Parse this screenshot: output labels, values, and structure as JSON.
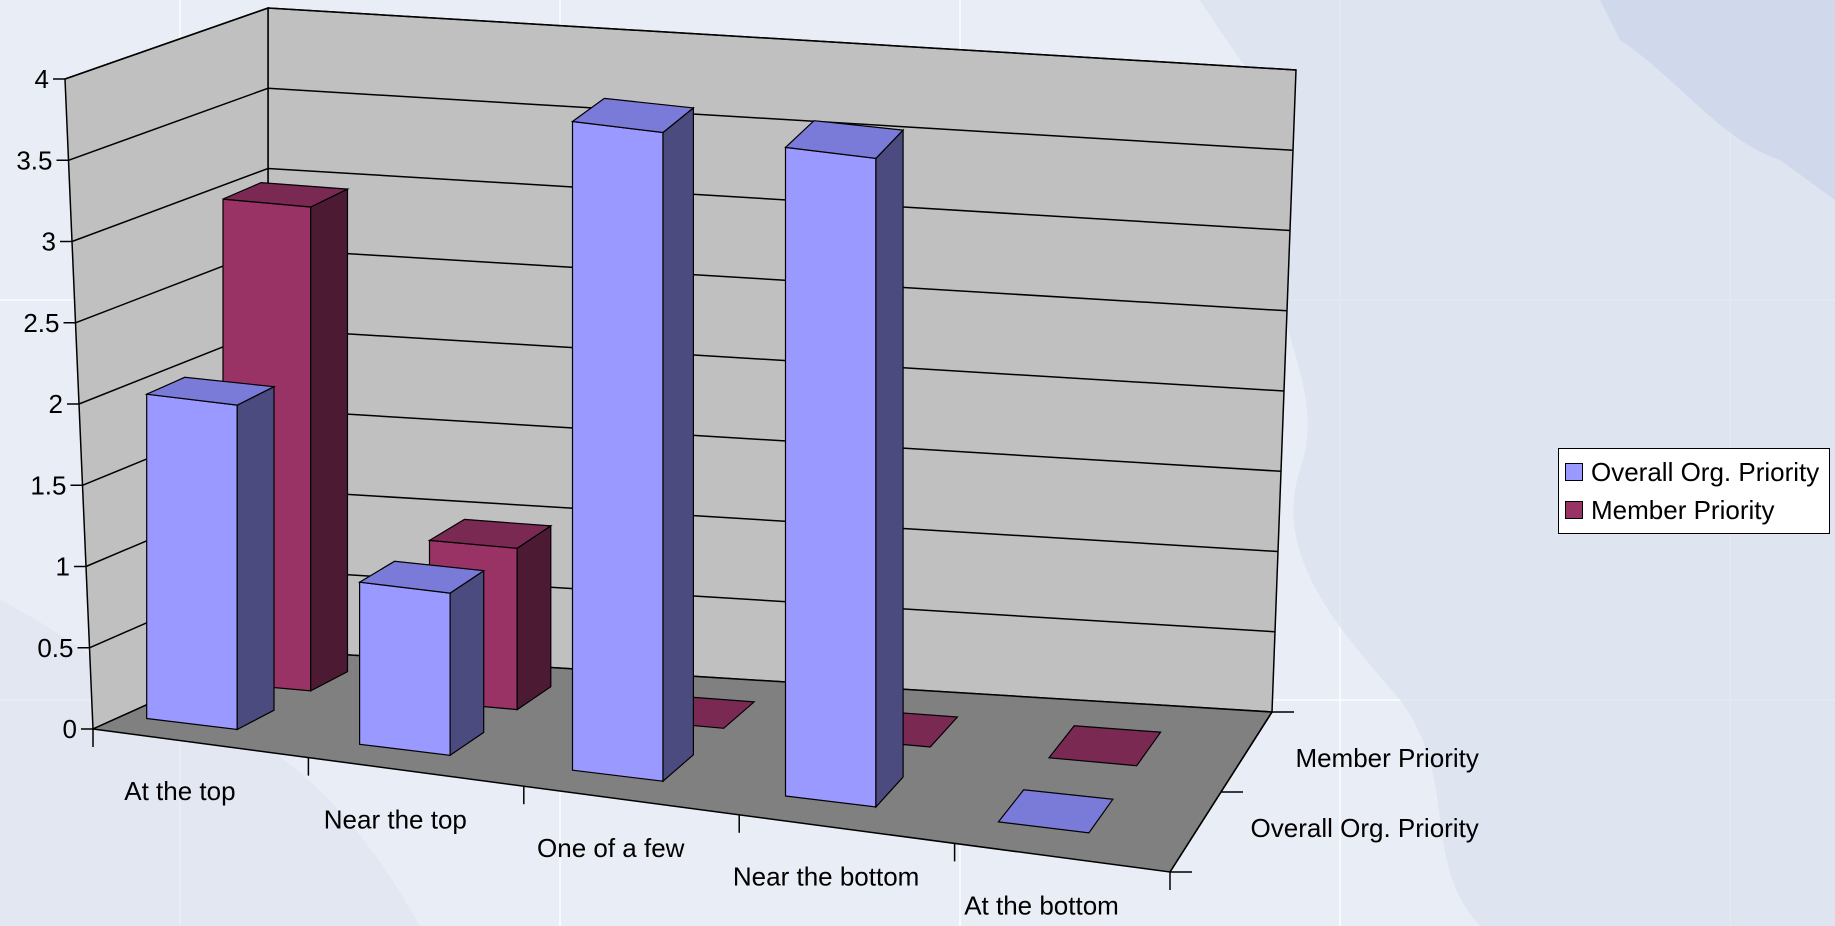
{
  "chart_data": {
    "type": "bar",
    "categories": [
      "At the top",
      "Near the top",
      "One of a few",
      "Near the bottom",
      "At the bottom"
    ],
    "series": [
      {
        "name": "Overall Org. Priority",
        "values": [
          2,
          1,
          4,
          4,
          0
        ],
        "color": "#9999ff",
        "side_color": "#4b4b7f",
        "top_color": "#7a7ad9"
      },
      {
        "name": "Member Priority",
        "values": [
          3,
          1,
          0,
          0,
          0
        ],
        "color": "#993366",
        "side_color": "#4d1a33",
        "top_color": "#7a2952"
      }
    ],
    "depth_labels": [
      "Member Priority",
      "Overall Org. Priority"
    ],
    "yticks": [
      "0",
      "0.5",
      "1",
      "1.5",
      "2",
      "2.5",
      "3",
      "3.5",
      "4"
    ],
    "ylim": [
      0,
      4
    ],
    "grid": true,
    "legend": "right"
  },
  "colors": {
    "wall": "#c0c0c0",
    "floor": "#808080"
  }
}
